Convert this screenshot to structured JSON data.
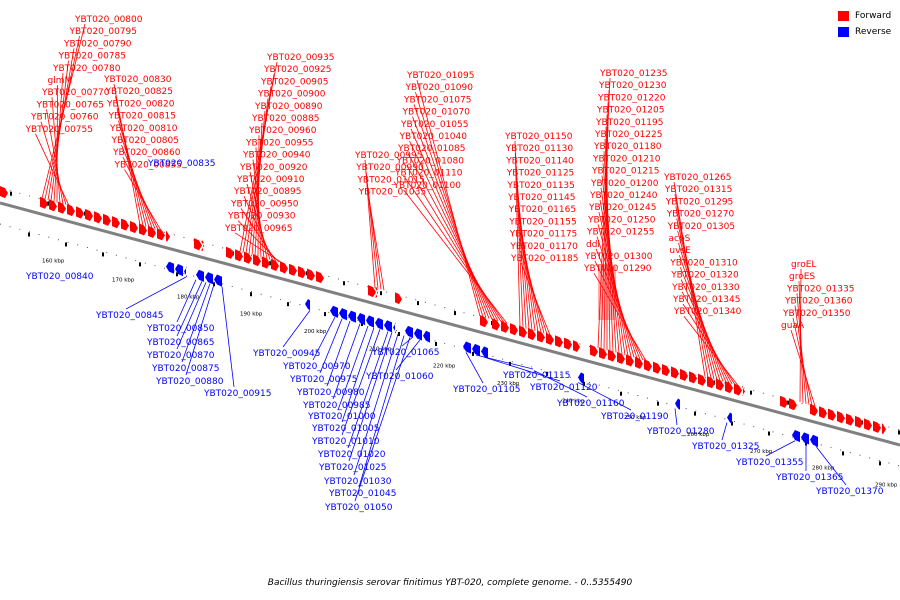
{
  "legend": {
    "forward_label": "Forward",
    "reverse_label": "Reverse",
    "forward_color": "#ff0000",
    "reverse_color": "#0000ff"
  },
  "caption": "Bacillus thuringiensis serovar finitimus YBT-020, complete genome. - 0..5355490",
  "backbone_color": "#808080",
  "scale_ticks": [
    "160 kbp",
    "170 kbp",
    "180 kbp",
    "190 kbp",
    "200 kbp",
    "210 kbp",
    "220 kbp",
    "230 kbp",
    "240 kbp",
    "250 kbp",
    "260 kbp",
    "270 kbp",
    "280 kbp",
    "290 kbp"
  ],
  "forward_labels": [
    "YBT020_00800",
    "YBT020_00795",
    "YBT020_00790",
    "YBT020_00785",
    "YBT020_00780",
    "glmM",
    "YBT020_00770",
    "YBT020_00765",
    "YBT020_00760",
    "YBT020_00755",
    "YBT020_00830",
    "YBT020_00825",
    "YBT020_00820",
    "YBT020_00815",
    "YBT020_00810",
    "YBT020_00805",
    "YBT020_00860",
    "YBT020_00855",
    "YBT020_00935",
    "YBT020_00925",
    "YBT020_00905",
    "YBT020_00900",
    "YBT020_00890",
    "YBT020_00885",
    "YBT020_00960",
    "YBT020_00955",
    "YBT020_00940",
    "YBT020_00920",
    "YBT020_00910",
    "YBT020_00895",
    "YBT020_00950",
    "YBT020_00930",
    "YBT020_00965",
    "YBT020_00995",
    "YBT020_00990",
    "YBT020_01015",
    "YBT020_01035",
    "YBT020_01095",
    "YBT020_01090",
    "YBT020_01075",
    "YBT020_01070",
    "YBT020_01055",
    "YBT020_01040",
    "YBT020_01085",
    "YBT020_01080",
    "YBT020_01110",
    "YBT020_01100",
    "YBT020_01150",
    "YBT020_01130",
    "YBT020_01140",
    "YBT020_01125",
    "YBT020_01135",
    "YBT020_01145",
    "YBT020_01165",
    "YBT020_01155",
    "YBT020_01175",
    "YBT020_01170",
    "YBT020_01185",
    "YBT020_01235",
    "YBT020_01230",
    "YBT020_01220",
    "YBT020_01205",
    "YBT020_01195",
    "YBT020_01225",
    "YBT020_01180",
    "YBT020_01210",
    "YBT020_01215",
    "YBT020_01200",
    "YBT020_01240",
    "YBT020_01245",
    "YBT020_01250",
    "YBT020_01255",
    "ddl",
    "YBT020_01300",
    "YBT020_01290",
    "YBT020_01265",
    "YBT020_01315",
    "YBT020_01295",
    "YBT020_01270",
    "YBT020_01305",
    "acpS",
    "uvsE",
    "YBT020_01310",
    "YBT020_01320",
    "YBT020_01330",
    "YBT020_01345",
    "YBT020_01340",
    "groEL",
    "groES",
    "YBT020_01335",
    "YBT020_01360",
    "YBT020_01350",
    "guaA"
  ],
  "reverse_labels": [
    "YBT020_00835",
    "YBT020_00840",
    "YBT020_00845",
    "YBT020_00850",
    "YBT020_00865",
    "YBT020_00870",
    "YBT020_00875",
    "YBT020_00880",
    "YBT020_00915",
    "YBT020_00945",
    "YBT020_00970",
    "YBT020_00975",
    "YBT020_00980",
    "YBT020_00985",
    "YBT020_01000",
    "YBT020_01005",
    "YBT020_01010",
    "YBT020_01020",
    "YBT020_01025",
    "YBT020_01030",
    "YBT020_01045",
    "YBT020_01050",
    "YBT020_01065",
    "YBT020_01060",
    "YBT020_01105",
    "YBT020_01115",
    "YBT020_01120",
    "YBT020_01160",
    "YBT020_01190",
    "YBT020_01280",
    "YBT020_01325",
    "YBT020_01355",
    "YBT020_01365",
    "YBT020_01370"
  ]
}
